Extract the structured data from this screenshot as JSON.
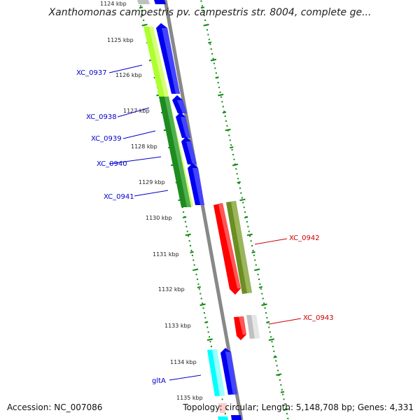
{
  "title": "Xanthomonas campestris pv. campestris str. 8004, complete ge...",
  "footer": {
    "accession": "Accession: NC_007086",
    "topology": "Topology: circular",
    "length": "Length: 5,148,708 bp",
    "genes": "Genes: 4,331"
  },
  "colors": {
    "backbone": "#888888",
    "tick": "#118811",
    "forward_label": "#0000cc",
    "reverse_label": "#cc0000",
    "blue_feature": "#0000ee",
    "red_feature": "#ff0000",
    "olive_feature": "#6b8e23",
    "lime_feature": "#adff2f",
    "green_feature": "#1e8b1e",
    "cyan_feature": "#00ffff",
    "gray_feature": "#c0c0c0"
  },
  "scale": {
    "unit": "kbp",
    "ticks": [
      "1124 kbp",
      "1125 kbp",
      "1126 kbp",
      "1127 kbp",
      "1128 kbp",
      "1129 kbp",
      "1130 kbp",
      "1131 kbp",
      "1132 kbp",
      "1133 kbp",
      "1134 kbp",
      "1135 kbp"
    ]
  },
  "features": [
    {
      "name": "XC_0937",
      "strand": "forward"
    },
    {
      "name": "XC_0938",
      "strand": "forward"
    },
    {
      "name": "XC_0939",
      "strand": "forward"
    },
    {
      "name": "XC_0940",
      "strand": "forward"
    },
    {
      "name": "XC_0941",
      "strand": "forward"
    },
    {
      "name": "XC_0942",
      "strand": "reverse"
    },
    {
      "name": "XC_0943",
      "strand": "reverse"
    },
    {
      "name": "gltA",
      "strand": "forward"
    }
  ]
}
